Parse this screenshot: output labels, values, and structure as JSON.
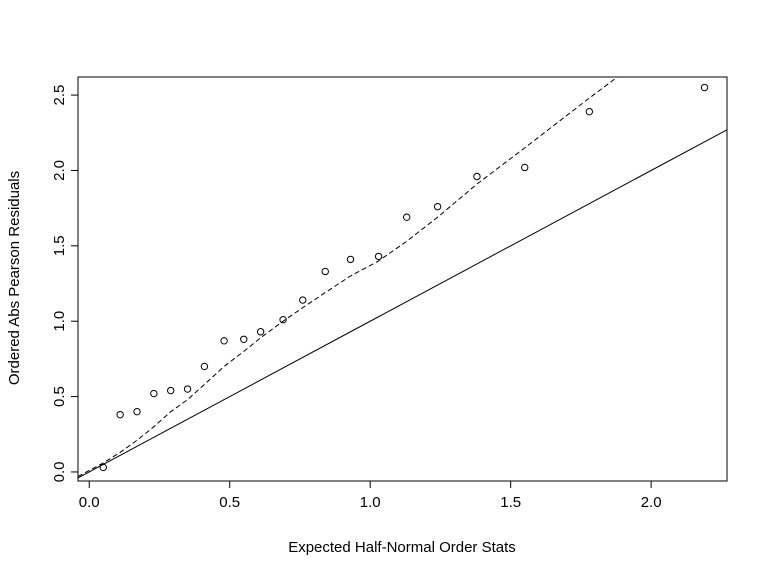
{
  "chart_data": {
    "type": "scatter",
    "title": "",
    "xlabel": "Expected Half-Normal Order Stats",
    "ylabel": "Ordered Abs Pearson Residuals",
    "xlim": [
      -0.04,
      2.27
    ],
    "ylim": [
      -0.06,
      2.62
    ],
    "xticks": [
      0.0,
      0.5,
      1.0,
      1.5,
      2.0
    ],
    "xtick_labels": [
      "0.0",
      "0.5",
      "1.0",
      "1.5",
      "2.0"
    ],
    "yticks": [
      0.0,
      0.5,
      1.0,
      1.5,
      2.0,
      2.5
    ],
    "ytick_labels": [
      "0.0",
      "0.5",
      "1.0",
      "1.5",
      "2.0",
      "2.5"
    ],
    "grid": false,
    "series": [
      {
        "kind": "points",
        "marker": "open-circle",
        "x": [
          0.05,
          0.11,
          0.17,
          0.23,
          0.29,
          0.35,
          0.41,
          0.48,
          0.55,
          0.61,
          0.69,
          0.76,
          0.84,
          0.93,
          1.03,
          1.13,
          1.24,
          1.38,
          1.55,
          1.78,
          2.19
        ],
        "y": [
          0.03,
          0.38,
          0.4,
          0.52,
          0.54,
          0.55,
          0.7,
          0.87,
          0.88,
          0.93,
          1.01,
          1.14,
          1.33,
          1.41,
          1.43,
          1.69,
          1.76,
          1.96,
          2.02,
          2.39,
          2.55
        ]
      },
      {
        "kind": "reference-line",
        "style": "solid",
        "intercept": 0,
        "slope": 1
      },
      {
        "kind": "simulated-envelope",
        "style": "dashed",
        "x": [
          -0.04,
          0.05,
          0.11,
          0.17,
          0.23,
          0.29,
          0.35,
          0.41,
          0.48,
          0.55,
          0.61,
          0.69,
          0.76,
          0.84,
          0.93,
          1.03,
          1.13,
          1.24,
          1.38,
          1.55,
          1.78,
          1.88
        ],
        "y": [
          -0.03,
          0.06,
          0.13,
          0.21,
          0.3,
          0.4,
          0.48,
          0.58,
          0.7,
          0.8,
          0.89,
          1.0,
          1.09,
          1.19,
          1.3,
          1.4,
          1.53,
          1.69,
          1.91,
          2.15,
          2.48,
          2.62
        ]
      }
    ]
  }
}
